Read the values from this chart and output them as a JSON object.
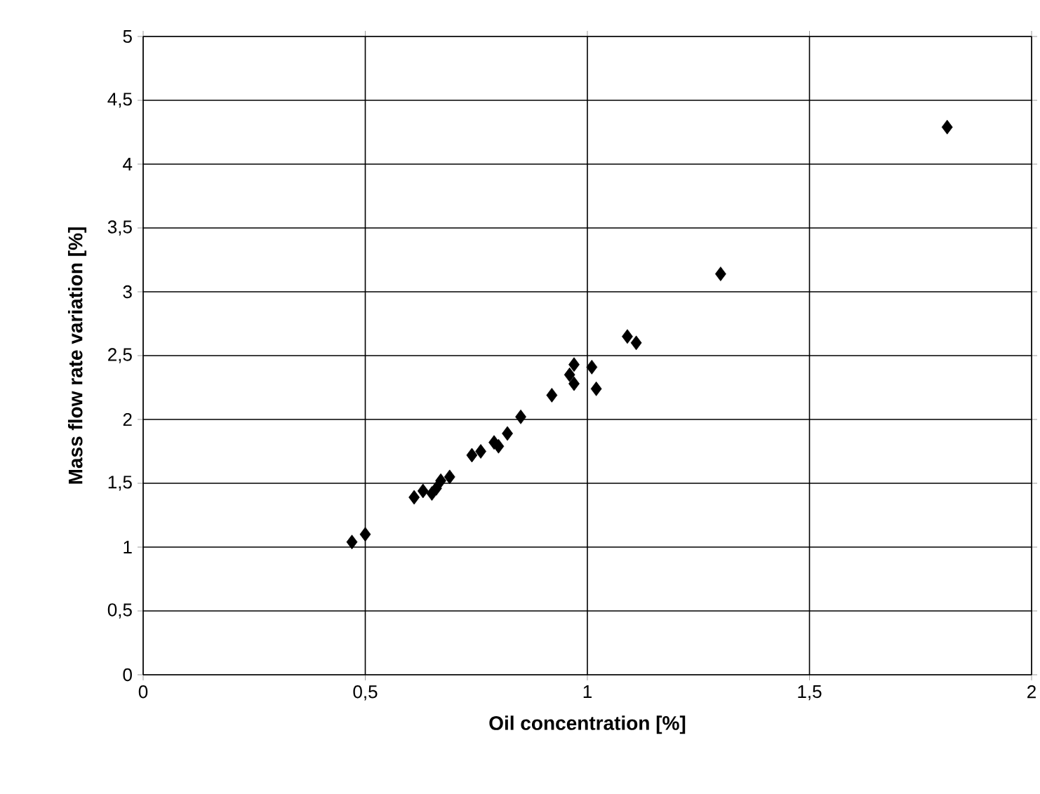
{
  "chart_data": {
    "type": "scatter",
    "xlabel": "Oil concentration [%]",
    "ylabel": "Mass flow rate variation [%]",
    "x": [
      0.47,
      0.5,
      0.61,
      0.63,
      0.65,
      0.66,
      0.67,
      0.69,
      0.74,
      0.76,
      0.79,
      0.8,
      0.82,
      0.85,
      0.92,
      0.96,
      0.97,
      0.97,
      1.01,
      1.02,
      1.09,
      1.11,
      1.3,
      1.81
    ],
    "values": [
      1.04,
      1.1,
      1.39,
      1.44,
      1.42,
      1.46,
      1.52,
      1.55,
      1.72,
      1.75,
      1.82,
      1.79,
      1.89,
      2.02,
      2.19,
      2.35,
      2.28,
      2.43,
      2.41,
      2.24,
      2.65,
      2.6,
      3.14,
      4.29
    ],
    "color": "#000000",
    "marker": "diamond",
    "grid": true,
    "xlim": [
      0,
      2
    ],
    "ylim": [
      0,
      5
    ],
    "xticks": [
      0,
      {
        "value": 0.5,
        "label": "0,5"
      },
      1,
      {
        "value": 1.5,
        "label": "1,5"
      },
      2
    ],
    "yticks": [
      0,
      {
        "value": 0.5,
        "label": "0,5"
      },
      1,
      {
        "value": 1.5,
        "label": "1,5"
      },
      2,
      {
        "value": 2.5,
        "label": "2,5"
      },
      3,
      {
        "value": 3.5,
        "label": "3,5"
      },
      4,
      {
        "value": 4.5,
        "label": "4,5"
      },
      5
    ]
  }
}
